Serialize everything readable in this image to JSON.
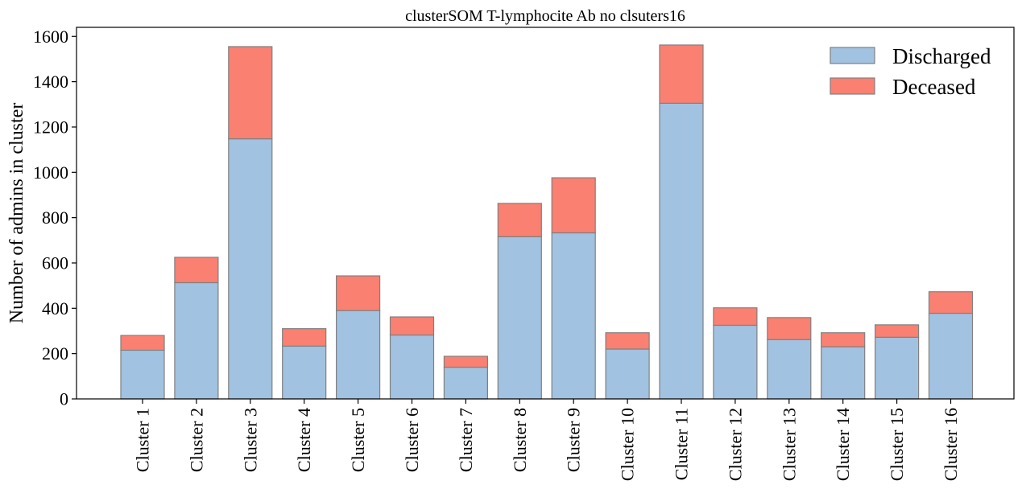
{
  "chart_data": {
    "type": "bar",
    "stacked": true,
    "title": "clusterSOM T-lymphocite Ab no clsuters16",
    "xlabel": "",
    "ylabel": "Number of admins in cluster",
    "ylim": [
      0,
      1640
    ],
    "yticks": [
      0,
      200,
      400,
      600,
      800,
      1000,
      1200,
      1400,
      1600
    ],
    "categories": [
      "Cluster 1",
      "Cluster 2",
      "Cluster 3",
      "Cluster 4",
      "Cluster 5",
      "Cluster 6",
      "Cluster 7",
      "Cluster 8",
      "Cluster 9",
      "Cluster 10",
      "Cluster 11",
      "Cluster 12",
      "Cluster 13",
      "Cluster 14",
      "Cluster 15",
      "Cluster 16"
    ],
    "series": [
      {
        "name": "Discharged",
        "color": "#a1c2e0",
        "values": [
          215,
          513,
          1148,
          233,
          390,
          282,
          140,
          716,
          733,
          220,
          1305,
          325,
          262,
          230,
          272,
          378
        ]
      },
      {
        "name": "Deceased",
        "color": "#fa8072",
        "values": [
          65,
          112,
          407,
          77,
          153,
          80,
          48,
          147,
          243,
          72,
          257,
          77,
          97,
          62,
          55,
          95
        ]
      }
    ],
    "grid": false,
    "legend": "top-right",
    "edge_color": "#808080"
  }
}
